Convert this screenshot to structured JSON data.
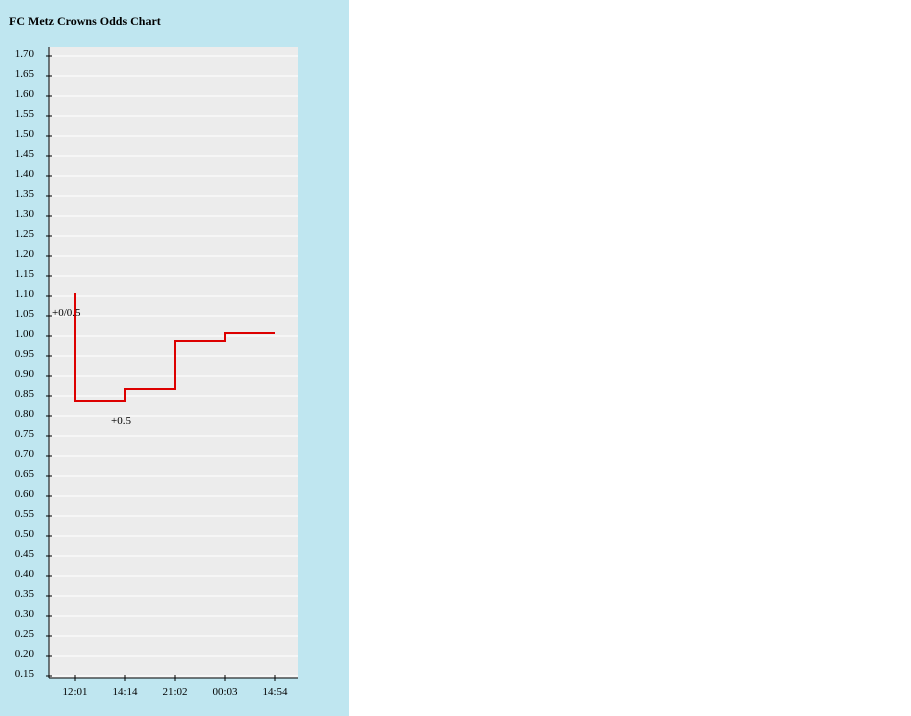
{
  "page": {
    "background": "#ffffff",
    "panel_color": "#bfe6f0"
  },
  "chart_data": {
    "type": "line",
    "step": true,
    "title": "FC Metz Crowns Odds Chart",
    "xlabel": "",
    "ylabel": "",
    "x_ticks": [
      "12:01",
      "14:14",
      "21:02",
      "00:03",
      "14:54"
    ],
    "y_ticks": [
      "0.15",
      "0.20",
      "0.25",
      "0.30",
      "0.35",
      "0.40",
      "0.45",
      "0.50",
      "0.55",
      "0.60",
      "0.65",
      "0.70",
      "0.75",
      "0.80",
      "0.85",
      "0.90",
      "0.95",
      "1.00",
      "1.05",
      "1.10",
      "1.15",
      "1.20",
      "1.25",
      "1.30",
      "1.35",
      "1.40",
      "1.45",
      "1.50",
      "1.55",
      "1.60",
      "1.65",
      "1.70"
    ],
    "ylim": [
      0.15,
      1.7
    ],
    "grid": true,
    "legend": "none",
    "series": [
      {
        "color": "#dd0000",
        "points": [
          {
            "x": "12:01",
            "y": 1.1
          },
          {
            "x": "12:01",
            "y": 0.83
          },
          {
            "x": "14:14",
            "y": 0.83
          },
          {
            "x": "14:14",
            "y": 0.86
          },
          {
            "x": "21:02",
            "y": 0.86
          },
          {
            "x": "21:02",
            "y": 0.98
          },
          {
            "x": "00:03",
            "y": 0.98
          },
          {
            "x": "00:03",
            "y": 1.0
          },
          {
            "x": "14:54",
            "y": 1.0
          }
        ]
      }
    ],
    "annotations": [
      {
        "text": "+0/0.5",
        "x": "12:01",
        "y": 1.07
      },
      {
        "text": "+0.5",
        "x": "14:14",
        "y": 0.8
      }
    ],
    "colors": {
      "plot_background": "#ececec",
      "grid": "#ffffff",
      "axis": "#000000",
      "line": "#dd0000"
    }
  }
}
